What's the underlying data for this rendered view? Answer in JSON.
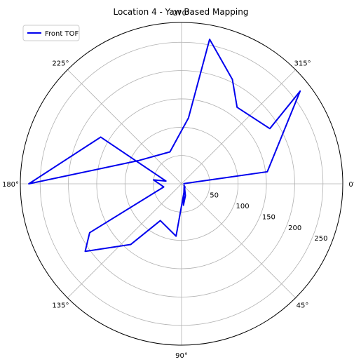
{
  "chart_data": {
    "type": "line",
    "projection": "polar",
    "title": "Location 4 - Yaw Based Mapping",
    "theta_direction": "clockwise",
    "theta_zero": "east",
    "theta_ticks": [
      0,
      45,
      90,
      135,
      180,
      225,
      270,
      315
    ],
    "theta_tick_labels": [
      "0°",
      "45°",
      "90°",
      "135°",
      "180°",
      "225°",
      "270°",
      "315°"
    ],
    "r_ticks": [
      50,
      100,
      150,
      200,
      250
    ],
    "r_tick_labels": [
      "50",
      "100",
      "150",
      "200",
      "250"
    ],
    "rlim": [
      0,
      285
    ],
    "grid": true,
    "legend": {
      "position": "upper-left",
      "entries": [
        "Front TOF"
      ]
    },
    "colors": {
      "series": "#0000ee",
      "grid": "#b0b0b0",
      "axis": "#000000"
    },
    "series": [
      {
        "name": "Front TOF",
        "points": [
          {
            "theta": 20,
            "r": 5
          },
          {
            "theta": 85,
            "r": 38
          },
          {
            "theta": 72,
            "r": 22
          },
          {
            "theta": 57,
            "r": 10
          },
          {
            "theta": 41,
            "r": 8
          },
          {
            "theta": 96,
            "r": 93
          },
          {
            "theta": 120,
            "r": 75
          },
          {
            "theta": 130,
            "r": 140
          },
          {
            "theta": 145,
            "r": 208
          },
          {
            "theta": 152,
            "r": 184
          },
          {
            "theta": 170,
            "r": 32
          },
          {
            "theta": 188,
            "r": 50
          },
          {
            "theta": 190,
            "r": 28
          },
          {
            "theta": 210,
            "r": 165
          },
          {
            "theta": 180,
            "r": 270
          },
          {
            "theta": 208,
            "r": 87
          },
          {
            "theta": 250,
            "r": 60
          },
          {
            "theta": 276,
            "r": 117
          },
          {
            "theta": 281,
            "r": 260
          },
          {
            "theta": 296,
            "r": 205
          },
          {
            "theta": 306,
            "r": 167
          },
          {
            "theta": 328,
            "r": 184
          },
          {
            "theta": 322,
            "r": 266
          },
          {
            "theta": 352,
            "r": 153
          },
          {
            "theta": 355,
            "r": 5
          },
          {
            "theta": 0,
            "r": 4
          },
          {
            "theta": 8,
            "r": 5
          }
        ]
      }
    ]
  }
}
